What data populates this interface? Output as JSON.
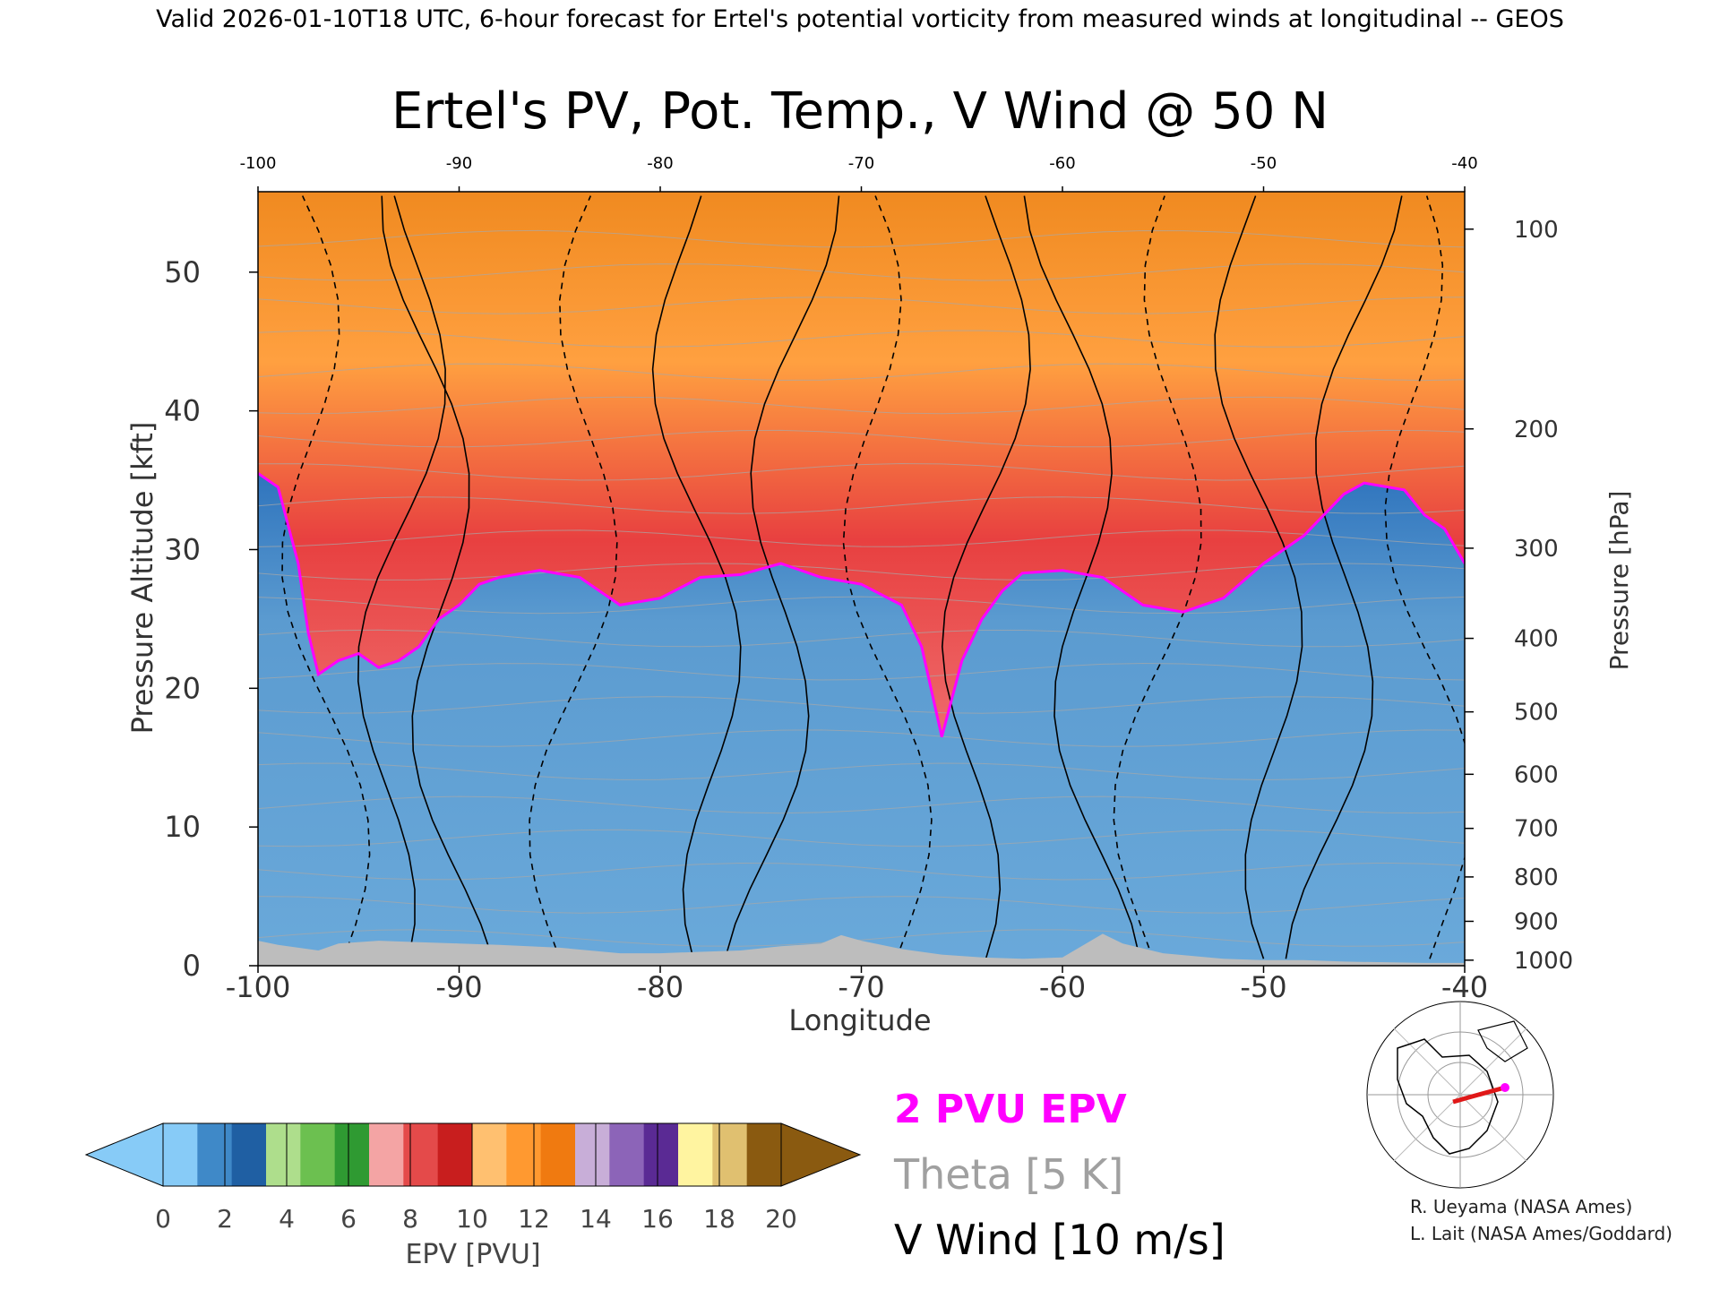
{
  "header_text": "Valid 2026-01-10T18 UTC, 6-hour forecast for Ertel's potential vorticity from measured winds at longitudinal -- GEOS",
  "chart_data": {
    "type": "heatmap",
    "title": "Ertel's PV, Pot. Temp., V Wind @ 50 N",
    "xlabel": "Longitude",
    "ylabel": "Pressure Altitude [kft]",
    "y2label": "Pressure [hPa]",
    "xlim": [
      -100,
      -40
    ],
    "ylim": [
      0,
      55.8
    ],
    "x_ticks": [
      -100,
      -90,
      -80,
      -70,
      -60,
      -50,
      -40
    ],
    "top_x_ticks": [
      "-100",
      "-90",
      "-80",
      "-70",
      "-60",
      "-50",
      "-40"
    ],
    "bottom_x_ticks": [
      "-100",
      "-90",
      "-80",
      "-70",
      "-60",
      "-50",
      "-40"
    ],
    "y_ticks": [
      0,
      10,
      20,
      30,
      40,
      50
    ],
    "y_tick_labels": [
      "0",
      "10",
      "20",
      "30",
      "40",
      "50"
    ],
    "pressure_ticks": [
      {
        "label": "100",
        "kft": 53.1
      },
      {
        "label": "200",
        "kft": 38.7
      },
      {
        "label": "300",
        "kft": 30.1
      },
      {
        "label": "400",
        "kft": 23.6
      },
      {
        "label": "500",
        "kft": 18.3
      },
      {
        "label": "600",
        "kft": 13.8
      },
      {
        "label": "700",
        "kft": 9.9
      },
      {
        "label": "800",
        "kft": 6.4
      },
      {
        "label": "900",
        "kft": 3.2
      },
      {
        "label": "1000",
        "kft": 0.4
      }
    ],
    "tropopause_2pvu_kft": [
      [
        -100,
        35.5
      ],
      [
        -99,
        34.5
      ],
      [
        -98,
        29
      ],
      [
        -97.5,
        24
      ],
      [
        -97,
        21
      ],
      [
        -96,
        22
      ],
      [
        -95,
        22.5
      ],
      [
        -94,
        21.5
      ],
      [
        -93,
        22
      ],
      [
        -92,
        23
      ],
      [
        -91,
        25
      ],
      [
        -90,
        26
      ],
      [
        -89,
        27.5
      ],
      [
        -88,
        28
      ],
      [
        -86,
        28.5
      ],
      [
        -84,
        28
      ],
      [
        -82,
        26
      ],
      [
        -80,
        26.5
      ],
      [
        -78,
        28
      ],
      [
        -76,
        28.2
      ],
      [
        -74,
        29
      ],
      [
        -72,
        28
      ],
      [
        -70,
        27.5
      ],
      [
        -68,
        26
      ],
      [
        -67,
        23
      ],
      [
        -66,
        16.5
      ],
      [
        -65,
        22
      ],
      [
        -64,
        25
      ],
      [
        -63,
        27
      ],
      [
        -62,
        28.3
      ],
      [
        -60,
        28.5
      ],
      [
        -58,
        28
      ],
      [
        -56,
        26
      ],
      [
        -54,
        25.5
      ],
      [
        -52,
        26.5
      ],
      [
        -50,
        29
      ],
      [
        -48,
        31
      ],
      [
        -46,
        34
      ],
      [
        -45,
        34.8
      ],
      [
        -43,
        34.3
      ],
      [
        -42,
        32.5
      ],
      [
        -41,
        31.5
      ],
      [
        -40,
        29
      ]
    ],
    "topography_kft": [
      [
        -100,
        1.8
      ],
      [
        -99,
        1.5
      ],
      [
        -97,
        1.1
      ],
      [
        -96,
        1.6
      ],
      [
        -94,
        1.8
      ],
      [
        -92,
        1.7
      ],
      [
        -90,
        1.6
      ],
      [
        -88,
        1.5
      ],
      [
        -85,
        1.3
      ],
      [
        -82,
        0.9
      ],
      [
        -80,
        0.9
      ],
      [
        -78,
        1.0
      ],
      [
        -76,
        1.1
      ],
      [
        -74,
        1.4
      ],
      [
        -72,
        1.6
      ],
      [
        -71,
        2.2
      ],
      [
        -70,
        1.8
      ],
      [
        -68,
        1.2
      ],
      [
        -66,
        0.8
      ],
      [
        -64,
        0.6
      ],
      [
        -62,
        0.5
      ],
      [
        -60,
        0.6
      ],
      [
        -58,
        2.3
      ],
      [
        -57,
        1.6
      ],
      [
        -55,
        0.9
      ],
      [
        -52,
        0.5
      ],
      [
        -50,
        0.4
      ],
      [
        -48,
        0.4
      ],
      [
        -46,
        0.3
      ],
      [
        -42,
        0.2
      ],
      [
        -40,
        0.2
      ]
    ],
    "colorbar": {
      "label": "EPV [PVU]",
      "ticks": [
        "0",
        "2",
        "4",
        "6",
        "8",
        "10",
        "12",
        "14",
        "16",
        "18",
        "20"
      ],
      "colors": [
        "#87cbf7",
        "#3f89c8",
        "#1f5fa3",
        "#aede8c",
        "#6cc050",
        "#2f9a32",
        "#f4a4a4",
        "#e44a4a",
        "#c81e1e",
        "#ffc070",
        "#ff9930",
        "#f07a10",
        "#c8aed8",
        "#8c64b8",
        "#5a2a94",
        "#fff4a0",
        "#e0c070",
        "#8a5a10"
      ],
      "under_color": "#87cbf7",
      "over_color": "#8a5a10"
    },
    "legend": [
      {
        "label": "2 PVU EPV",
        "color": "#ff00ff"
      },
      {
        "label": "Theta [5 K]",
        "color": "#a0a0a0"
      },
      {
        "label": "V Wind [10 m/s]",
        "color": "#000000"
      }
    ],
    "credits": [
      "R. Ueyama (NASA Ames)",
      "L. Lait (NASA Ames/Goddard)"
    ],
    "colors": {
      "troposphere_blue": "#5b9bd0",
      "topography": "#bdbdbd",
      "tropopause": "#ff00ff",
      "theta_lines": "#a8a8a8"
    }
  }
}
